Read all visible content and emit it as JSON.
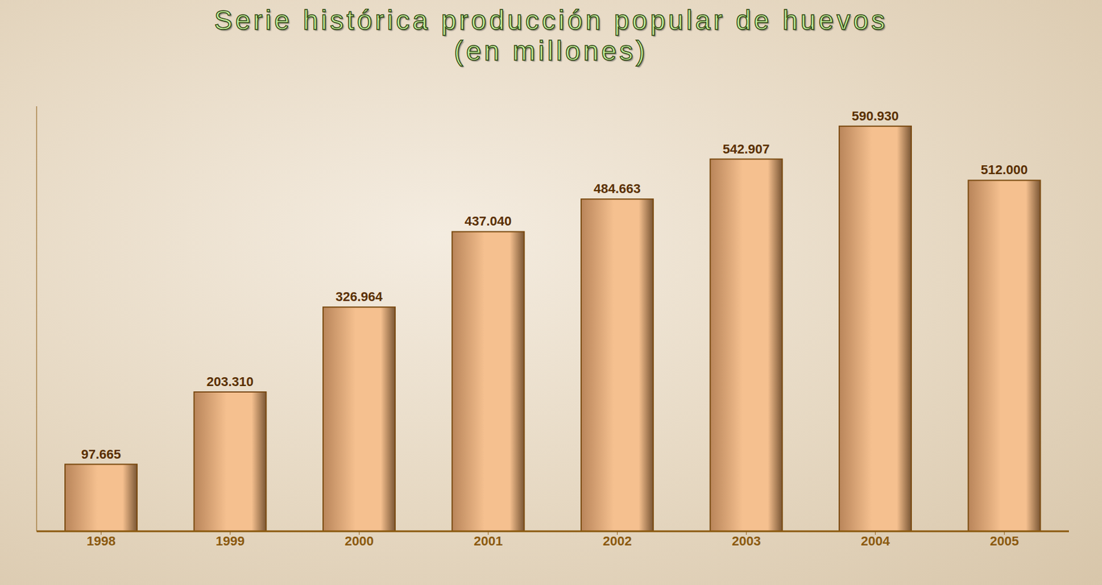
{
  "chart_data": {
    "type": "bar",
    "title": "Serie histórica producción popular de huevos (en millones)",
    "categories": [
      "1998",
      "1999",
      "2000",
      "2001",
      "2002",
      "2003",
      "2004",
      "2005"
    ],
    "values": [
      97.665,
      203.31,
      326.964,
      437.04,
      484.663,
      542.907,
      590.93,
      512
    ],
    "value_labels": [
      "97.665",
      "203.310",
      "326.964",
      "437.040",
      "484.663",
      "542.907",
      "590.930",
      "512.000"
    ],
    "color": "#f5c08f",
    "ylim": [
      0,
      620
    ],
    "data_labels": true,
    "tick_labels": "x",
    "grid": false
  }
}
